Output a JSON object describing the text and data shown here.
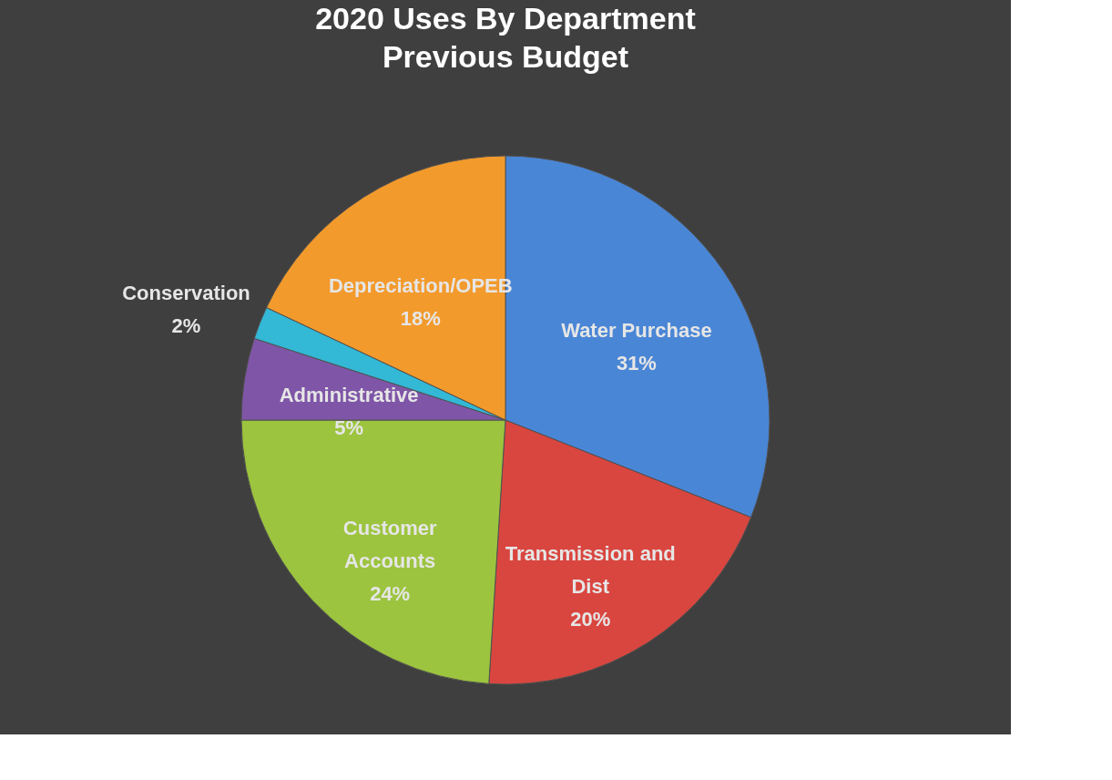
{
  "chart_data": {
    "type": "pie",
    "title": "2020 Uses By Department",
    "subtitle": "Previous Budget",
    "categories": [
      "Water Purchase",
      "Transmission and Dist",
      "Customer Accounts",
      "Administrative",
      "Conservation",
      "Depreciation/OPEB"
    ],
    "values": [
      31,
      20,
      24,
      5,
      2,
      18
    ],
    "value_labels": [
      "31%",
      "20%",
      "24%",
      "5%",
      "2%",
      "18%"
    ],
    "colors": [
      "#4a86d6",
      "#d9463f",
      "#9cc43e",
      "#7f56a7",
      "#33b8d6",
      "#f39a2c"
    ],
    "legend": false
  }
}
